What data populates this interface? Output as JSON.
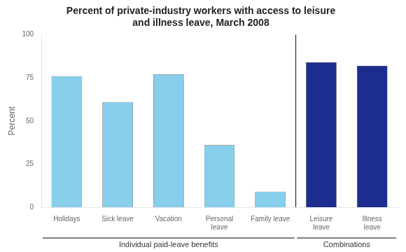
{
  "chart_data": {
    "type": "bar",
    "title": "Percent of private-industry workers with access to leisure\nand illness leave, March 2008",
    "y_label": "Percent",
    "categories": [
      "Holidays",
      "Sick leave",
      "Vacation",
      "Personal\nleave",
      "Family leave",
      "Leisure\nleave",
      "Illness\nleave"
    ],
    "values": [
      76,
      61,
      77,
      36,
      9,
      84,
      82
    ],
    "colors": [
      "#87CEEB",
      "#87CEEB",
      "#87CEEB",
      "#87CEEB",
      "#87CEEB",
      "#1C2D8F",
      "#1C2D8F"
    ],
    "ylim": [
      0,
      100
    ],
    "yticks": [
      0,
      25,
      50,
      75,
      100
    ],
    "grid": false,
    "annotations": [
      {
        "text": "Individual paid-leave benefits",
        "categories": [
          "Holidays",
          "Sick leave",
          "Vacation",
          "Personal\nleave",
          "Family leave"
        ]
      },
      {
        "text": "Combinations",
        "categories": [
          "Leisure\nleave",
          "Illness\nleave"
        ]
      }
    ]
  }
}
